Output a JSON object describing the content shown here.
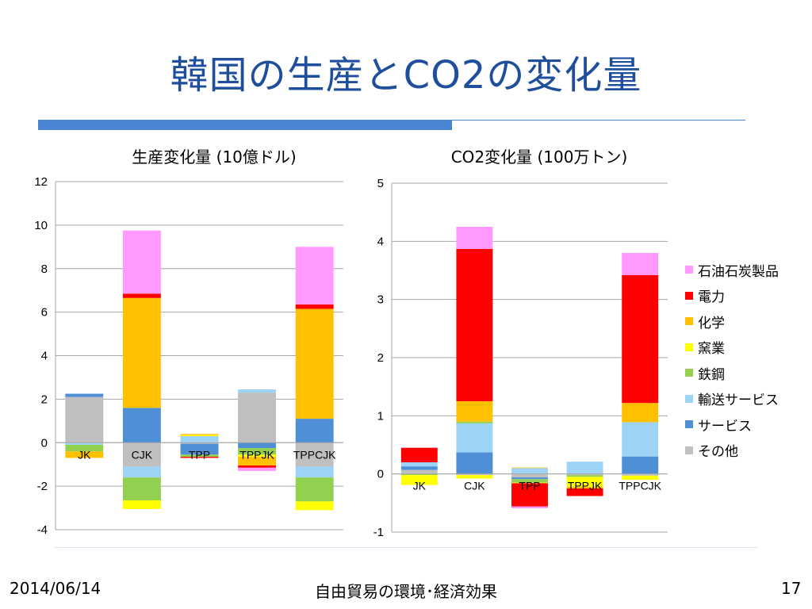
{
  "slide": {
    "title": "韓国の生産とCO2の変化量",
    "footer_date": "2014/06/14",
    "footer_center": "自由貿易の環境･経済効果",
    "page_number": "17"
  },
  "legend": [
    {
      "name": "石油石炭製品",
      "color": "#ff99ff"
    },
    {
      "name": "電力",
      "color": "#ff0000"
    },
    {
      "name": "化学",
      "color": "#ffc000"
    },
    {
      "name": "窯業",
      "color": "#ffff00"
    },
    {
      "name": "鉄鋼",
      "color": "#92d050"
    },
    {
      "name": "輸送サービス",
      "color": "#9dd3f5"
    },
    {
      "name": "サービス",
      "color": "#4f8fd6"
    },
    {
      "name": "その他",
      "color": "#bfbfbf"
    }
  ],
  "chart_data": [
    {
      "type": "bar",
      "stacked": true,
      "title": "生産変化量 (10億ドル)",
      "categories": [
        "JK",
        "CJK",
        "TPP",
        "TPPJK",
        "TPPCJK"
      ],
      "ylim": [
        -4,
        12
      ],
      "yticks": [
        -4,
        -2,
        0,
        2,
        4,
        6,
        8,
        10,
        12
      ],
      "grid": true,
      "series": [
        {
          "name": "石油石炭製品",
          "color": "#ff99ff",
          "values": [
            0,
            2.9,
            0,
            -0.15,
            2.65
          ]
        },
        {
          "name": "電力",
          "color": "#ff0000",
          "values": [
            0,
            0.2,
            -0.05,
            -0.1,
            0.2
          ]
        },
        {
          "name": "化学",
          "color": "#ffc000",
          "values": [
            -0.3,
            5.05,
            0.05,
            -0.4,
            5.05
          ]
        },
        {
          "name": "窯業",
          "color": "#ffff00",
          "values": [
            0,
            -0.4,
            0.05,
            -0.1,
            -0.4
          ]
        },
        {
          "name": "鉄鋼",
          "color": "#92d050",
          "values": [
            -0.3,
            -1.05,
            -0.1,
            -0.3,
            -1.1
          ]
        },
        {
          "name": "輸送サービス",
          "color": "#9dd3f5",
          "values": [
            -0.1,
            -0.5,
            0.3,
            0.15,
            -0.5
          ]
        },
        {
          "name": "サービス",
          "color": "#4f8fd6",
          "values": [
            0.15,
            1.6,
            -0.5,
            -0.25,
            1.1
          ]
        },
        {
          "name": "その他",
          "color": "#bfbfbf",
          "values": [
            2.1,
            -1.1,
            -0.05,
            2.3,
            -1.1
          ]
        }
      ]
    },
    {
      "type": "bar",
      "stacked": true,
      "title": "CO2変化量 (100万トン)",
      "categories": [
        "JK",
        "CJK",
        "TPP",
        "TPPJK",
        "TPPCJK"
      ],
      "ylim": [
        -1,
        5
      ],
      "yticks": [
        -1,
        0,
        1,
        2,
        3,
        4,
        5
      ],
      "grid": true,
      "series": [
        {
          "name": "石油石炭製品",
          "color": "#ff99ff",
          "values": [
            0,
            0.38,
            -0.03,
            0,
            0.38
          ]
        },
        {
          "name": "電力",
          "color": "#ff0000",
          "values": [
            0.25,
            2.62,
            -0.4,
            -0.13,
            2.2
          ]
        },
        {
          "name": "化学",
          "color": "#ffc000",
          "values": [
            0,
            0.35,
            0.01,
            -0.03,
            0.33
          ]
        },
        {
          "name": "窯業",
          "color": "#ffff00",
          "values": [
            -0.17,
            -0.06,
            -0.01,
            -0.17,
            -0.07
          ]
        },
        {
          "name": "鉄鋼",
          "color": "#92d050",
          "values": [
            -0.02,
            0.03,
            -0.06,
            -0.03,
            0
          ]
        },
        {
          "name": "輸送サービス",
          "color": "#9dd3f5",
          "values": [
            0.07,
            0.5,
            0.1,
            0.21,
            0.59
          ]
        },
        {
          "name": "サービス",
          "color": "#4f8fd6",
          "values": [
            0.06,
            0.37,
            -0.03,
            0,
            0.3
          ]
        },
        {
          "name": "その他",
          "color": "#bfbfbf",
          "values": [
            0.07,
            -0.02,
            -0.06,
            -0.02,
            -0.03
          ]
        }
      ]
    }
  ]
}
